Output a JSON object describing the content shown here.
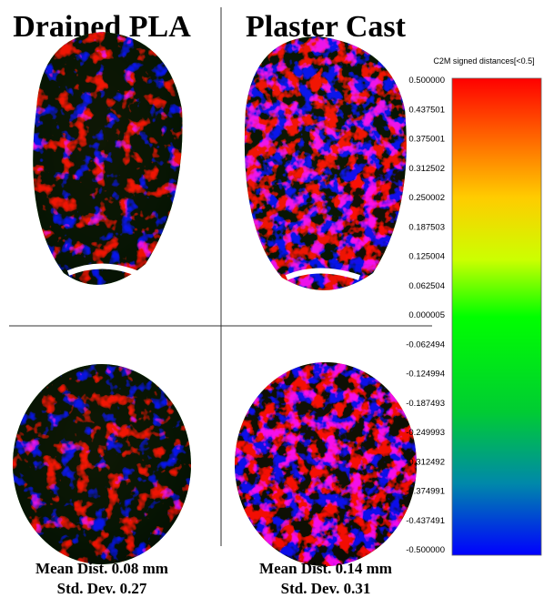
{
  "panels": [
    {
      "title": "Drained PLA",
      "mean": "Mean Dist. 0.08 mm",
      "std": "Std. Dev. 0.27"
    },
    {
      "title": "Plaster Cast",
      "mean": "Mean Dist. 0.14 mm",
      "std": "Std. Dev. 0.31"
    }
  ],
  "colorbar": {
    "label": "C2M signed distances[<0.5]",
    "ticks": [
      "0.500000",
      "0.437501",
      "0.375001",
      "0.312502",
      "0.250002",
      "0.187503",
      "0.125004",
      "0.062504",
      "0.000005",
      "-0.062494",
      "-0.124994",
      "-0.187493",
      "-0.249993",
      "-0.312492",
      "-0.374991",
      "-0.437491",
      "-0.500000"
    ]
  }
}
